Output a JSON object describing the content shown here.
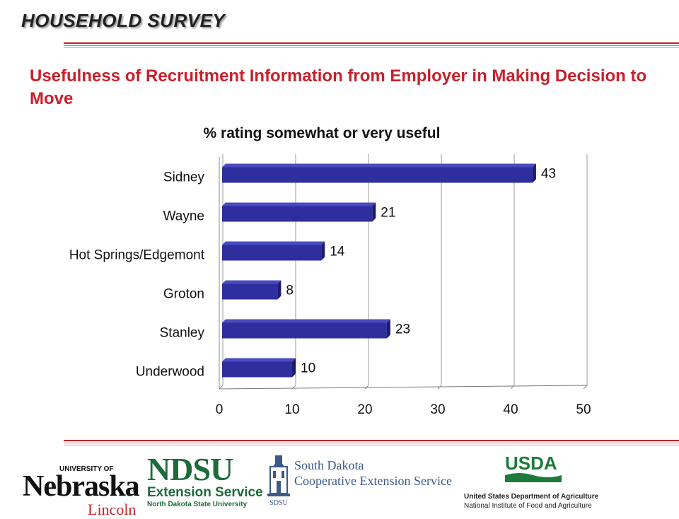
{
  "header": {
    "title": "HOUSEHOLD SURVEY"
  },
  "slide": {
    "title": "Usefulness of Recruitment Information from Employer in Making Decision to Move"
  },
  "chart_data": {
    "type": "bar",
    "orientation": "horizontal",
    "title": "% rating somewhat or very useful",
    "categories": [
      "Sidney",
      "Wayne",
      "Hot Springs/Edgemont",
      "Groton",
      "Stanley",
      "Underwood"
    ],
    "values": [
      43,
      21,
      14,
      8,
      23,
      10
    ],
    "data_labels": [
      "43",
      "21",
      "14",
      "8",
      "23",
      "10"
    ],
    "xlim": [
      0,
      50
    ],
    "xticks": [
      0,
      10,
      20,
      30,
      40,
      50
    ],
    "grid": true,
    "bar_color": "#2e2e9e",
    "xlabel": "",
    "ylabel": ""
  },
  "logos": {
    "nebraska": {
      "university": "UNIVERSITY OF",
      "name": "Nebraska",
      "campus": "Lincoln"
    },
    "ndsu": {
      "name": "NDSU",
      "service": "Extension Service",
      "university": "North Dakota State University"
    },
    "south_dakota": {
      "line1": "South Dakota",
      "line2": "Cooperative Extension Service",
      "mark": "SDSU"
    },
    "usda": {
      "mark": "USDA",
      "line1": "United States Department of Agriculture",
      "line2": "National Institute of Food and Agriculture"
    }
  },
  "colors": {
    "accent": "#c8202a",
    "bar": "#2e2e9e",
    "ndsu_green": "#1d6b3a",
    "usda_green": "#1d7a3a"
  }
}
